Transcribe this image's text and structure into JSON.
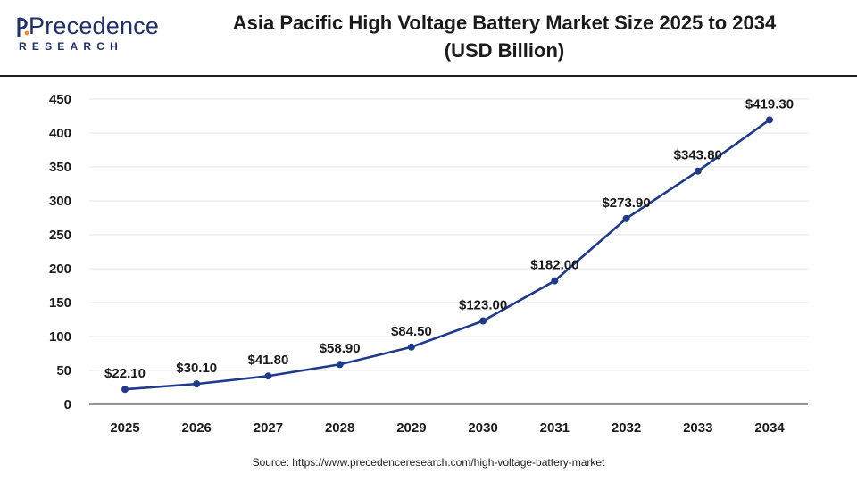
{
  "logo": {
    "word": "Precedence",
    "sub": "RESEARCH",
    "icon": "precedence-logo-icon"
  },
  "header": {
    "title_line1": "Asia Pacific High Voltage Battery Market Size 2025 to 2034",
    "title_line2": "(USD Billion)"
  },
  "footer": {
    "source": "Source: https://www.precedenceresearch.com/high-voltage-battery-market"
  },
  "colors": {
    "line": "#1f3a8a",
    "grid": "#e6e6e6",
    "axis": "#333333"
  },
  "chart_data": {
    "type": "line",
    "title": "Asia Pacific High Voltage Battery Market Size 2025 to 2034 (USD Billion)",
    "x": [
      "2025",
      "2026",
      "2027",
      "2028",
      "2029",
      "2030",
      "2031",
      "2032",
      "2033",
      "2034"
    ],
    "series": [
      {
        "values": [
          22.1,
          30.1,
          41.8,
          58.9,
          84.5,
          123.0,
          182.0,
          273.9,
          343.8,
          419.3
        ],
        "labels": [
          "$22.10",
          "$30.10",
          "$41.80",
          "$58.90",
          "$84.50",
          "$123.00",
          "$182.00",
          "$273.90",
          "$343.80",
          "$419.30"
        ]
      }
    ],
    "ylim": [
      0,
      450
    ],
    "yticks": [
      0,
      50,
      100,
      150,
      200,
      250,
      300,
      350,
      400,
      450
    ],
    "xlabel": "",
    "ylabel": "",
    "grid": true,
    "legend": "none"
  }
}
